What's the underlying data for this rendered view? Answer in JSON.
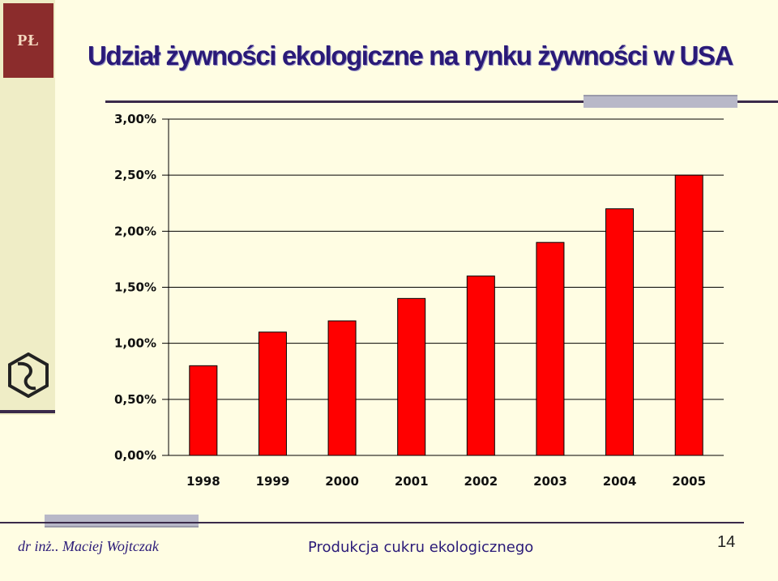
{
  "slide": {
    "logo_text": "PŁ",
    "title": "Udział żywności ekologiczne na rynku żywności w USA",
    "author": "dr inż.. Maciej Wojtczak",
    "subject": "Produkcja cukru ekologicznego",
    "page_number": "14"
  },
  "colors": {
    "bar": "#ff0000",
    "title": "#2a1a78",
    "logo": "#8b2c2c"
  },
  "chart_data": {
    "type": "bar",
    "categories": [
      "1998",
      "1999",
      "2000",
      "2001",
      "2002",
      "2003",
      "2004",
      "2005"
    ],
    "values": [
      0.8,
      1.1,
      1.2,
      1.4,
      1.6,
      1.9,
      2.2,
      2.5
    ],
    "y_ticks": [
      "0,00%",
      "0,50%",
      "1,00%",
      "1,50%",
      "2,00%",
      "2,50%",
      "3,00%"
    ],
    "ylim": [
      0,
      3
    ],
    "title": "",
    "xlabel": "",
    "ylabel": "",
    "grid": true,
    "legend": "none"
  }
}
